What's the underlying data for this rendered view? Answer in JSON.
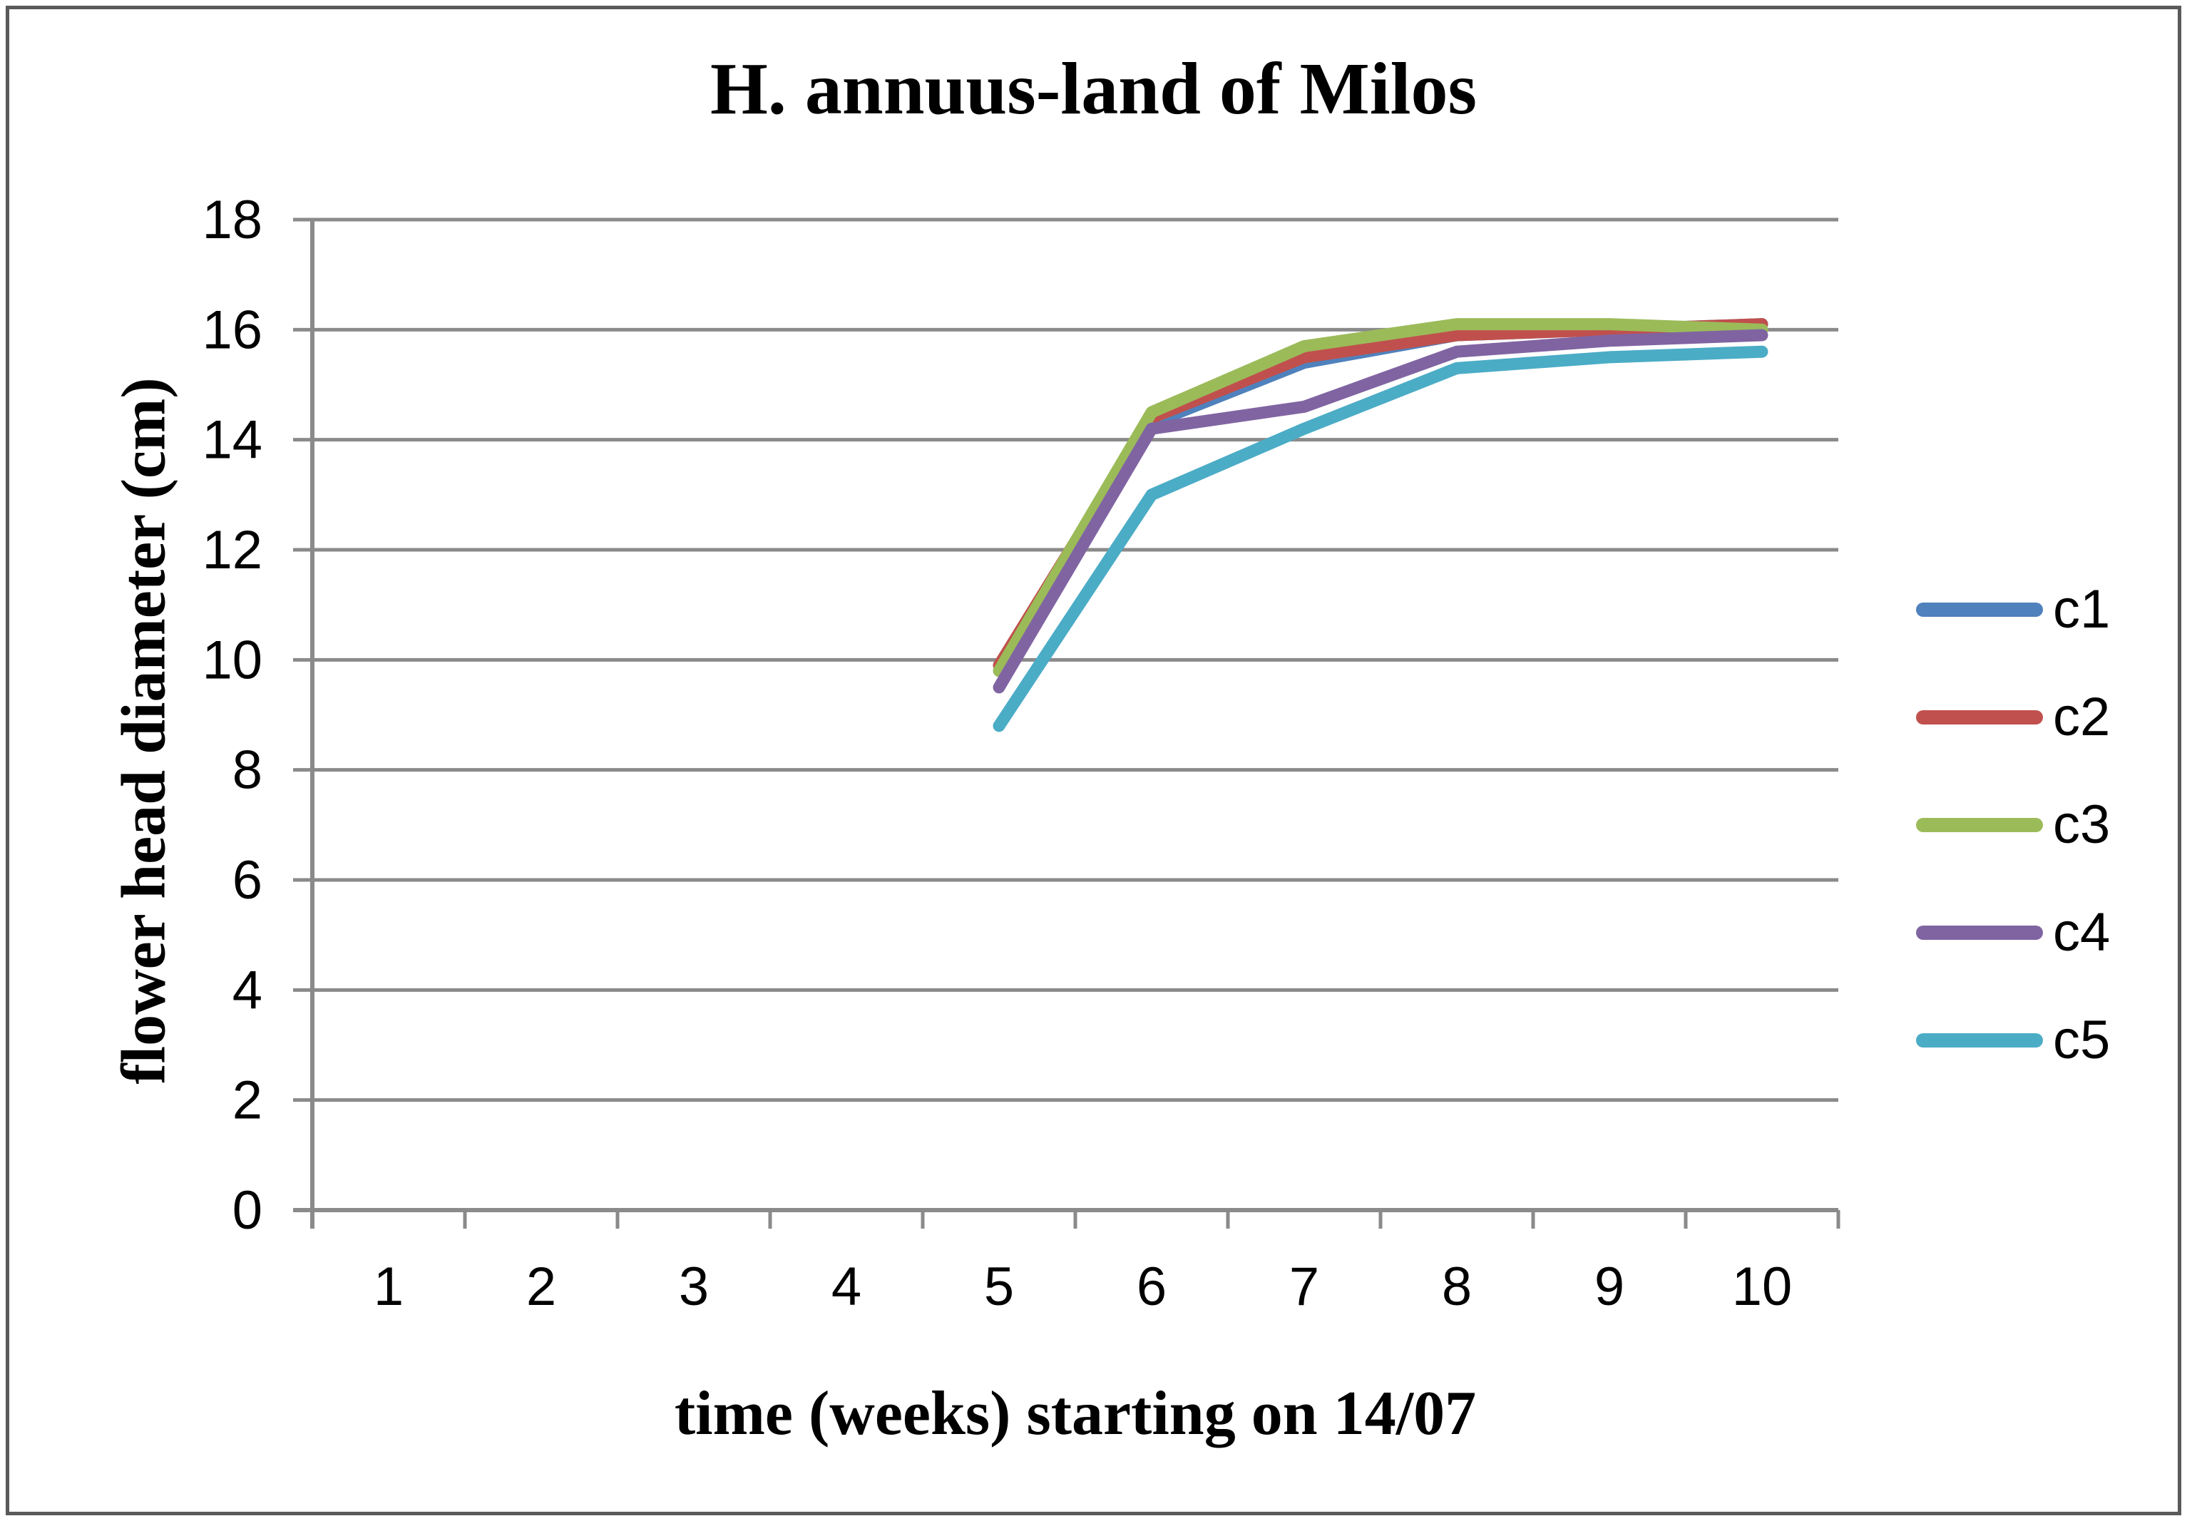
{
  "chart_data": {
    "type": "line",
    "title": "H. annuus-land of Milos",
    "xlabel": "time (weeks) starting on 14/07",
    "ylabel": "flower head diameter (cm)",
    "categories": [
      1,
      2,
      3,
      4,
      5,
      6,
      7,
      8,
      9,
      10
    ],
    "y_ticks": [
      0,
      2,
      4,
      6,
      8,
      10,
      12,
      14,
      16,
      18
    ],
    "ylim": [
      0,
      18
    ],
    "grid": true,
    "legend_position": "right",
    "series": [
      {
        "name": "c1",
        "color": "#4F81BD",
        "values": [
          null,
          null,
          null,
          null,
          9.9,
          14.3,
          15.4,
          15.9,
          16.0,
          16.1
        ]
      },
      {
        "name": "c2",
        "color": "#C0504D",
        "values": [
          null,
          null,
          null,
          null,
          9.9,
          14.4,
          15.5,
          15.9,
          16.0,
          16.1
        ]
      },
      {
        "name": "c3",
        "color": "#9BBB59",
        "values": [
          null,
          null,
          null,
          null,
          9.8,
          14.5,
          15.7,
          16.1,
          16.1,
          16.0
        ]
      },
      {
        "name": "c4",
        "color": "#8064A2",
        "values": [
          null,
          null,
          null,
          null,
          9.5,
          14.2,
          14.6,
          15.6,
          15.8,
          15.9
        ]
      },
      {
        "name": "c5",
        "color": "#4BACC6",
        "values": [
          null,
          null,
          null,
          null,
          8.8,
          13.0,
          14.2,
          15.3,
          15.5,
          15.6
        ]
      }
    ]
  },
  "colors": {
    "grid": "#8A8A8A",
    "axis": "#8A8A8A",
    "frame_border": "#5A5A5A",
    "text": "#000000"
  }
}
